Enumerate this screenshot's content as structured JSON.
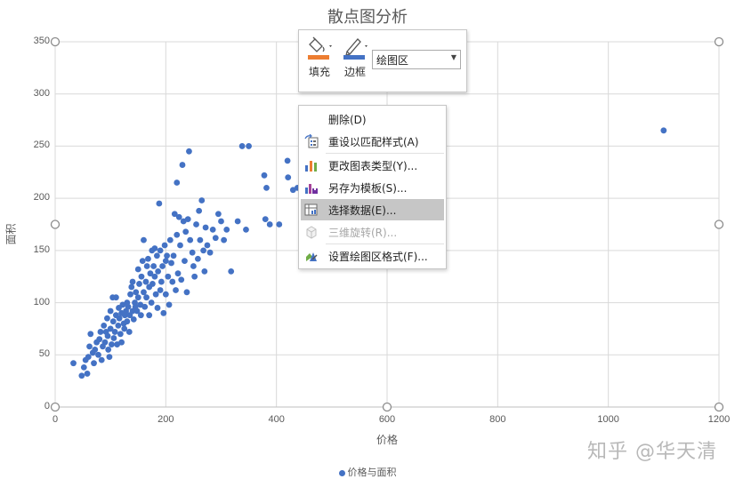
{
  "chart_data": {
    "type": "scatter",
    "title": "散点图分析",
    "xlabel": "价格",
    "ylabel": "面积",
    "xlim": [
      0,
      1200
    ],
    "ylim": [
      0,
      350
    ],
    "xticks": [
      "0",
      "200",
      "400",
      "600",
      "800",
      "1000",
      "1200"
    ],
    "yticks": [
      "0",
      "50",
      "100",
      "150",
      "200",
      "250",
      "300",
      "350"
    ],
    "grid": true,
    "legend_position": "bottom",
    "series": [
      {
        "name": "价格与面积",
        "color": "#4472c4",
        "points": [
          [
            33,
            42
          ],
          [
            48,
            30
          ],
          [
            52,
            38
          ],
          [
            55,
            45
          ],
          [
            58,
            32
          ],
          [
            60,
            48
          ],
          [
            62,
            58
          ],
          [
            64,
            70
          ],
          [
            68,
            52
          ],
          [
            70,
            42
          ],
          [
            72,
            55
          ],
          [
            75,
            62
          ],
          [
            78,
            50
          ],
          [
            80,
            65
          ],
          [
            82,
            72
          ],
          [
            84,
            45
          ],
          [
            86,
            58
          ],
          [
            88,
            78
          ],
          [
            90,
            62
          ],
          [
            92,
            72
          ],
          [
            94,
            85
          ],
          [
            95,
            68
          ],
          [
            96,
            55
          ],
          [
            98,
            48
          ],
          [
            100,
            75
          ],
          [
            100,
            92
          ],
          [
            102,
            60
          ],
          [
            104,
            105
          ],
          [
            105,
            82
          ],
          [
            106,
            66
          ],
          [
            108,
            72
          ],
          [
            110,
            88
          ],
          [
            110,
            105
          ],
          [
            112,
            60
          ],
          [
            114,
            78
          ],
          [
            115,
            95
          ],
          [
            116,
            85
          ],
          [
            118,
            70
          ],
          [
            120,
            90
          ],
          [
            120,
            62
          ],
          [
            122,
            98
          ],
          [
            124,
            80
          ],
          [
            125,
            75
          ],
          [
            126,
            88
          ],
          [
            128,
            92
          ],
          [
            130,
            82
          ],
          [
            130,
            100
          ],
          [
            132,
            96
          ],
          [
            134,
            72
          ],
          [
            135,
            88
          ],
          [
            136,
            108
          ],
          [
            138,
            115
          ],
          [
            140,
            92
          ],
          [
            140,
            120
          ],
          [
            142,
            84
          ],
          [
            144,
            100
          ],
          [
            145,
            96
          ],
          [
            146,
            110
          ],
          [
            148,
            92
          ],
          [
            150,
            132
          ],
          [
            150,
            105
          ],
          [
            152,
            118
          ],
          [
            154,
            98
          ],
          [
            155,
            88
          ],
          [
            156,
            125
          ],
          [
            158,
            140
          ],
          [
            160,
            110
          ],
          [
            160,
            160
          ],
          [
            162,
            96
          ],
          [
            164,
            120
          ],
          [
            165,
            105
          ],
          [
            166,
            135
          ],
          [
            168,
            142
          ],
          [
            170,
            115
          ],
          [
            170,
            88
          ],
          [
            172,
            128
          ],
          [
            174,
            100
          ],
          [
            175,
            150
          ],
          [
            176,
            118
          ],
          [
            178,
            135
          ],
          [
            180,
            152
          ],
          [
            180,
            125
          ],
          [
            182,
            108
          ],
          [
            184,
            145
          ],
          [
            185,
            95
          ],
          [
            186,
            130
          ],
          [
            188,
            195
          ],
          [
            190,
            150
          ],
          [
            190,
            112
          ],
          [
            192,
            120
          ],
          [
            194,
            135
          ],
          [
            196,
            90
          ],
          [
            198,
            155
          ],
          [
            200,
            108
          ],
          [
            200,
            140
          ],
          [
            202,
            145
          ],
          [
            204,
            125
          ],
          [
            206,
            98
          ],
          [
            208,
            160
          ],
          [
            210,
            138
          ],
          [
            212,
            120
          ],
          [
            214,
            145
          ],
          [
            216,
            185
          ],
          [
            218,
            112
          ],
          [
            220,
            165
          ],
          [
            220,
            215
          ],
          [
            222,
            128
          ],
          [
            224,
            182
          ],
          [
            226,
            155
          ],
          [
            228,
            122
          ],
          [
            230,
            232
          ],
          [
            232,
            178
          ],
          [
            234,
            140
          ],
          [
            236,
            168
          ],
          [
            238,
            110
          ],
          [
            240,
            180
          ],
          [
            242,
            245
          ],
          [
            244,
            160
          ],
          [
            248,
            148
          ],
          [
            250,
            135
          ],
          [
            252,
            125
          ],
          [
            255,
            175
          ],
          [
            258,
            142
          ],
          [
            260,
            188
          ],
          [
            262,
            160
          ],
          [
            265,
            198
          ],
          [
            268,
            150
          ],
          [
            270,
            130
          ],
          [
            272,
            172
          ],
          [
            275,
            155
          ],
          [
            280,
            148
          ],
          [
            285,
            170
          ],
          [
            290,
            162
          ],
          [
            295,
            185
          ],
          [
            300,
            178
          ],
          [
            305,
            160
          ],
          [
            310,
            170
          ],
          [
            318,
            130
          ],
          [
            330,
            178
          ],
          [
            338,
            250
          ],
          [
            345,
            170
          ],
          [
            350,
            250
          ],
          [
            378,
            222
          ],
          [
            380,
            180
          ],
          [
            382,
            210
          ],
          [
            388,
            175
          ],
          [
            405,
            175
          ],
          [
            420,
            236
          ],
          [
            421,
            220
          ],
          [
            430,
            208
          ],
          [
            438,
            210
          ],
          [
            1100,
            265
          ]
        ]
      }
    ]
  },
  "minitoolbar": {
    "fill_label": "填充",
    "border_label": "边框",
    "element_select_value": "绘图区"
  },
  "context_menu": {
    "items": [
      {
        "label": "删除(D)"
      },
      {
        "label": "重设以匹配样式(A)"
      },
      {
        "label": "更改图表类型(Y)..."
      },
      {
        "label": "另存为模板(S)..."
      },
      {
        "label": "选择数据(E)..."
      },
      {
        "label": "三维旋转(R)..."
      },
      {
        "label": "设置绘图区格式(F)..."
      }
    ]
  },
  "watermark": "知乎 @华天清"
}
